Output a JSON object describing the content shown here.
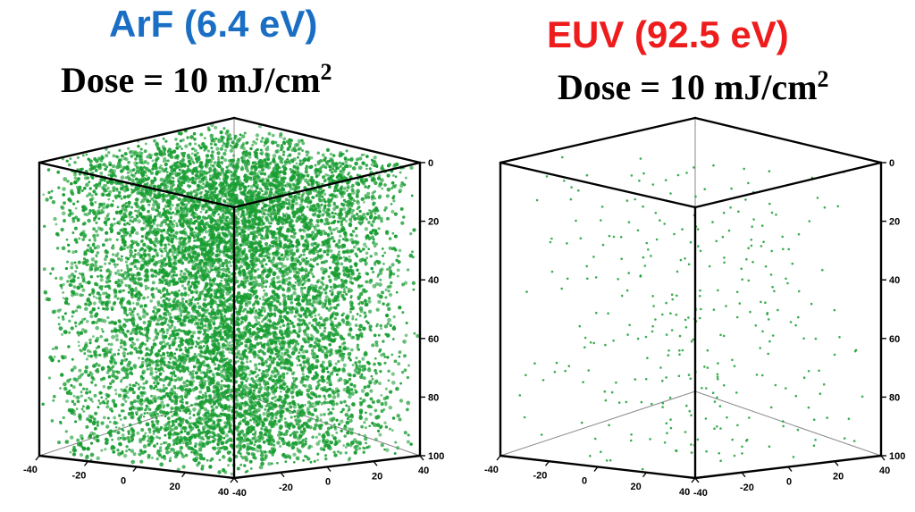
{
  "chart_data": [
    {
      "type": "scatter",
      "title": "ArF (6.4 eV)",
      "title_color": "#1a6fc4",
      "dose": {
        "prefix": "Dose = 10 mJ/cm",
        "sup": "2"
      },
      "point_color": "#1a9e33",
      "density": "dense",
      "xticks": [
        "-40",
        "-20",
        "0",
        "20",
        "40"
      ],
      "yticks": [
        "40",
        "20",
        "0",
        "-20",
        "-40"
      ],
      "zticks": [
        "0",
        "20",
        "40",
        "60",
        "80",
        "100"
      ],
      "xlim": [
        -40,
        40
      ],
      "ylim": [
        -40,
        40
      ],
      "zlim": [
        0,
        100
      ]
    },
    {
      "type": "scatter",
      "title": "EUV (92.5 eV)",
      "title_color": "#ee1c1c",
      "dose": {
        "prefix": "Dose = 10 mJ/cm",
        "sup": "2"
      },
      "point_color": "#1a9e33",
      "density": "sparse",
      "xticks": [
        "-40",
        "-20",
        "0",
        "20",
        "40"
      ],
      "yticks": [
        "40",
        "20",
        "0",
        "-20",
        "-40"
      ],
      "zticks": [
        "0",
        "20",
        "40",
        "60",
        "80",
        "100"
      ],
      "xlim": [
        -40,
        40
      ],
      "ylim": [
        -40,
        40
      ],
      "zlim": [
        0,
        100
      ]
    }
  ]
}
